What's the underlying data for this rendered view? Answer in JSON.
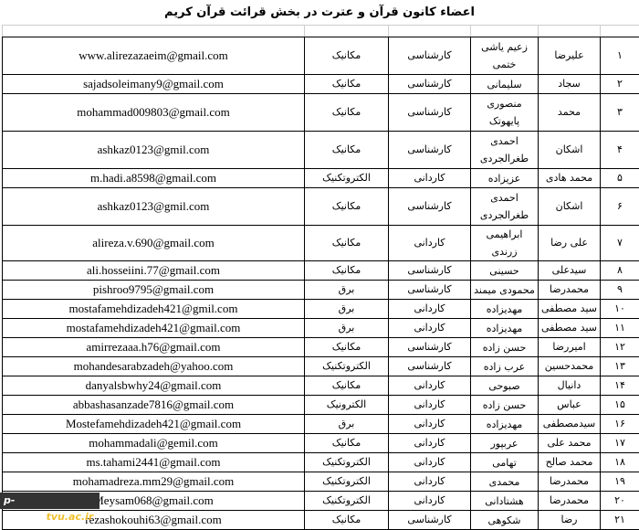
{
  "title": "اعضاء کانون قرآن و عترت در بخش قرائت قرآن کریم",
  "watermark": {
    "part1": "p-zarand.",
    "part2": "tvu.ac.ir"
  },
  "rows": [
    {
      "num": "۱",
      "first": "علیرضا",
      "last": "زعیم یاشی ختمی",
      "degree": "کارشناسی",
      "major": "مکانیک",
      "email": "www.alirezazaeim@gmail.com",
      "tall": true
    },
    {
      "num": "۲",
      "first": "سجاد",
      "last": "سلیمانی",
      "degree": "کارشناسی",
      "major": "مکانیک",
      "email": "sajadsoleimany9@gmail.com",
      "tall": false
    },
    {
      "num": "۳",
      "first": "محمد",
      "last": "منصوری پایهوتک",
      "degree": "کارشناسی",
      "major": "مکانیک",
      "email": "mohammad009803@gmail.com",
      "tall": true
    },
    {
      "num": "۴",
      "first": "اشکان",
      "last": "احمدی طغرالجردی",
      "degree": "کارشناسی",
      "major": "مکانیک",
      "email": "ashkaz0123@gmil.com",
      "tall": true
    },
    {
      "num": "۵",
      "first": "محمد هادی",
      "last": "عزیزاده",
      "degree": "کاردانی",
      "major": "الکتروتکنیک",
      "email": "m.hadi.a8598@gmail.com",
      "tall": false
    },
    {
      "num": "۶",
      "first": "اشکان",
      "last": "احمدی طغرالجردی",
      "degree": "کارشناسی",
      "major": "مکانیک",
      "email": "ashkaz0123@gmil.com",
      "tall": true
    },
    {
      "num": "۷",
      "first": "علی رضا",
      "last": "ابراهیمی زرندی",
      "degree": "کاردانی",
      "major": "مکانیک",
      "email": "alireza.v.690@gmail.com",
      "tall": false
    },
    {
      "num": "۸",
      "first": "سیدعلی",
      "last": "حسینی",
      "degree": "کارشناسی",
      "major": "مکانیک",
      "email": "ali.hosseiini.77@gmail.com",
      "tall": false
    },
    {
      "num": "۹",
      "first": "محمدرضا",
      "last": "محمودی میمند",
      "degree": "کارشناسی",
      "major": "برق",
      "email": "pishroo9795@gmail.com",
      "tall": false
    },
    {
      "num": "۱۰",
      "first": "سید مصطفی",
      "last": "مهدیزاده",
      "degree": "کاردانی",
      "major": "برق",
      "email": "mostafamehdizadeh421@gmil.com",
      "tall": false
    },
    {
      "num": "۱۱",
      "first": "سید مصطفی",
      "last": "مهدیزاده",
      "degree": "کاردانی",
      "major": "برق",
      "email": "mostafamehdizadeh421@gmail.com",
      "tall": false
    },
    {
      "num": "۱۲",
      "first": "امیررضا",
      "last": "حسن زاده",
      "degree": "کارشناسی",
      "major": "مکانیک",
      "email": "amirrezaaa.h76@gmail.com",
      "tall": false
    },
    {
      "num": "۱۳",
      "first": "محمدحسین",
      "last": "عرب زاده",
      "degree": "کارشناسی",
      "major": "الکتروتکنیک",
      "email": "mohandesarabzadeh@yahoo.com",
      "tall": false
    },
    {
      "num": "۱۴",
      "first": "دانیال",
      "last": "صبوحی",
      "degree": "کاردانی",
      "major": "مکانیک",
      "email": "danyalsbwhy24@gmail.com",
      "tall": false
    },
    {
      "num": "۱۵",
      "first": "عباس",
      "last": "حسن زاده",
      "degree": "کاردانی",
      "major": "الکترونیک",
      "email": "abbashasanzade7816@gmail.com",
      "tall": false
    },
    {
      "num": "۱۶",
      "first": "سیدمصطفی",
      "last": "مهدیزاده",
      "degree": "کاردانی",
      "major": "برق",
      "email": "Mostefamehdizadeh421@gmail.com",
      "tall": false
    },
    {
      "num": "۱۷",
      "first": "محمد علی",
      "last": "عربپور",
      "degree": "کاردانی",
      "major": "مکانیک",
      "email": "mohammadali@gemil.com",
      "tall": false
    },
    {
      "num": "۱۸",
      "first": "محمد صالح",
      "last": "تهامی",
      "degree": "کاردانی",
      "major": "الکتروتکنیک",
      "email": "ms.tahami2441@gmail.com",
      "tall": false
    },
    {
      "num": "۱۹",
      "first": "محمدرضا",
      "last": "محمدی",
      "degree": "کاردانی",
      "major": "الکتروتکنیک",
      "email": "mohamadreza.mm29@gmail.com",
      "tall": false
    },
    {
      "num": "۲۰",
      "first": "محمدرضا",
      "last": "هشتادانی",
      "degree": "کاردانی",
      "major": "الکتروتکنیک",
      "email": "Meysam068@gmail.com",
      "tall": false
    },
    {
      "num": "۲۱",
      "first": "رضا",
      "last": "شکوهی",
      "degree": "کارشناسی",
      "major": "مکانیک",
      "email": "rezashokouhi63@gmail.com",
      "tall": false
    }
  ]
}
